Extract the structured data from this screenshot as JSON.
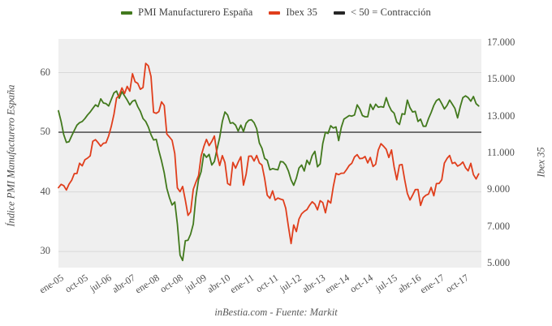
{
  "figure": {
    "background_color": "#ffffff",
    "plot_background_color": "#efefef",
    "grid_color": "#d9d9d9",
    "caption": "inBestia.com - Fuente: Markit"
  },
  "legend": {
    "items": [
      {
        "label": "PMI Manufacturero España",
        "color": "#42791d"
      },
      {
        "label": "Ibex 35",
        "color": "#e03e1c"
      },
      {
        "label": "< 50 = Contracción",
        "color": "#262626"
      }
    ]
  },
  "axes": {
    "left": {
      "title": "Índice PMI Manufacturero España",
      "tick_labels": [
        "60",
        "50",
        "40",
        "30"
      ],
      "tick_values": [
        60,
        50,
        40,
        30
      ],
      "range": [
        27.3,
        65.65
      ]
    },
    "right": {
      "title": "Ibex 35",
      "tick_labels": [
        "17.000",
        "15.000",
        "13.000",
        "11.000",
        "9.000",
        "7.000",
        "5.000"
      ],
      "tick_values": [
        17000,
        15000,
        13000,
        11000,
        9000,
        7000,
        5000
      ],
      "range": [
        4780,
        17220
      ]
    },
    "x": {
      "tick_labels": [
        "ene-05",
        "oct-05",
        "jul-06",
        "abr-07",
        "ene-08",
        "oct-08",
        "jul-09",
        "abr-10",
        "ene-11",
        "oct-11",
        "jul-12",
        "abr-13",
        "ene-14",
        "oct-14",
        "jul-15",
        "abr-16",
        "ene-17",
        "oct-17"
      ],
      "tick_month_offsets": [
        0,
        9,
        18,
        27,
        36,
        45,
        54,
        63,
        72,
        81,
        90,
        99,
        108,
        117,
        126,
        135,
        144,
        153
      ]
    }
  },
  "chart_data": {
    "type": "line",
    "x_meta": {
      "start": "ene-05",
      "end": "abr-18",
      "frequency": "monthly",
      "n_points": 160
    },
    "grid": true,
    "legend_position": "top-center",
    "reference_line": {
      "label": "< 50 = Contracción",
      "axis": "left",
      "value": 50,
      "color": "#3c3c3c"
    },
    "series": [
      {
        "name": "PMI Manufacturero España",
        "axis": "left",
        "color": "#42791d",
        "values": [
          53.6,
          51.8,
          49.6,
          48.3,
          48.4,
          49.4,
          50.3,
          51.2,
          51.6,
          51.8,
          52.3,
          52.9,
          53.4,
          54.0,
          54.6,
          54.3,
          55.6,
          54.9,
          54.8,
          54.4,
          55.5,
          56.6,
          56.9,
          55.7,
          56.8,
          56.1,
          55.4,
          54.6,
          55.2,
          55.4,
          54.3,
          53.5,
          52.3,
          51.8,
          50.9,
          49.6,
          48.7,
          48.8,
          46.9,
          45.2,
          43.2,
          40.6,
          39.0,
          37.8,
          38.3,
          34.6,
          29.4,
          28.5,
          31.8,
          31.9,
          32.9,
          34.6,
          39.1,
          42.1,
          43.4,
          46.4,
          45.8,
          46.3,
          44.5,
          45.1,
          47.2,
          49.1,
          51.8,
          53.4,
          52.9,
          51.5,
          51.6,
          51.2,
          50.2,
          51.2,
          50.1,
          51.5,
          52.0,
          52.1,
          51.6,
          50.6,
          48.2,
          47.3,
          45.6,
          45.3,
          43.7,
          43.9,
          43.8,
          43.7,
          45.1,
          45.0,
          44.5,
          43.5,
          42.0,
          41.1,
          42.3,
          44.0,
          44.5,
          43.5,
          45.3,
          44.6,
          46.1,
          46.8,
          44.2,
          44.7,
          48.1,
          50.0,
          49.8,
          51.1,
          50.7,
          50.9,
          48.6,
          50.8,
          52.2,
          52.5,
          52.8,
          52.7,
          52.9,
          54.6,
          53.9,
          52.8,
          52.6,
          52.6,
          54.7,
          53.8,
          54.7,
          54.2,
          54.3,
          54.2,
          55.8,
          54.5,
          53.6,
          53.2,
          51.7,
          51.3,
          53.1,
          53.0,
          55.4,
          54.1,
          53.4,
          53.5,
          51.8,
          52.2,
          51.0,
          51.0,
          52.3,
          53.3,
          54.5,
          55.3,
          55.6,
          54.8,
          53.9,
          54.5,
          55.4,
          54.7,
          54.0,
          52.4,
          54.3,
          55.8,
          56.1,
          55.8,
          55.2,
          56.0,
          54.8,
          54.4
        ]
      },
      {
        "name": "Ibex 35",
        "axis": "right",
        "color": "#e03e1c",
        "values": [
          9130,
          9310,
          9240,
          9000,
          9320,
          9530,
          9890,
          9900,
          10456,
          10316,
          10645,
          10734,
          10858,
          11649,
          11742,
          11580,
          11383,
          11548,
          11567,
          11954,
          12465,
          13128,
          14004,
          14147,
          14554,
          14248,
          14641,
          14374,
          15329,
          14892,
          14802,
          14479,
          14576,
          15890,
          15759,
          15182,
          13229,
          13170,
          13269,
          13798,
          13600,
          12046,
          11881,
          11707,
          10987,
          9116,
          8910,
          9195,
          8450,
          7621,
          7815,
          9038,
          9424,
          9787,
          10855,
          11365,
          11756,
          11414,
          11644,
          11940,
          10948,
          10333,
          10871,
          10492,
          9360,
          9264,
          10500,
          10187,
          10514,
          10812,
          9267,
          9859,
          10838,
          10851,
          10576,
          10879,
          10476,
          10359,
          9630,
          8719,
          8546,
          8955,
          8449,
          8566,
          8509,
          8465,
          8008,
          7011,
          6090,
          7102,
          6738,
          7421,
          7708,
          7842,
          7934,
          8168,
          8362,
          8230,
          7920,
          8419,
          8320,
          7763,
          8434,
          8290,
          9186,
          9907,
          9837,
          9916,
          9920,
          10114,
          10340,
          10459,
          10798,
          10923,
          10707,
          10728,
          10825,
          10477,
          10770,
          10279,
          10403,
          11178,
          11521,
          11385,
          11217,
          10769,
          11180,
          10259,
          9559,
          10360,
          10386,
          9544,
          8815,
          8461,
          8723,
          9025,
          9034,
          8163,
          8587,
          8716,
          8779,
          9143,
          8688,
          9352,
          9361,
          9556,
          10463,
          10716,
          10880,
          10445,
          10502,
          10299,
          10382,
          10523,
          10212,
          10044,
          10452,
          9840,
          9600,
          9880
        ]
      }
    ]
  }
}
